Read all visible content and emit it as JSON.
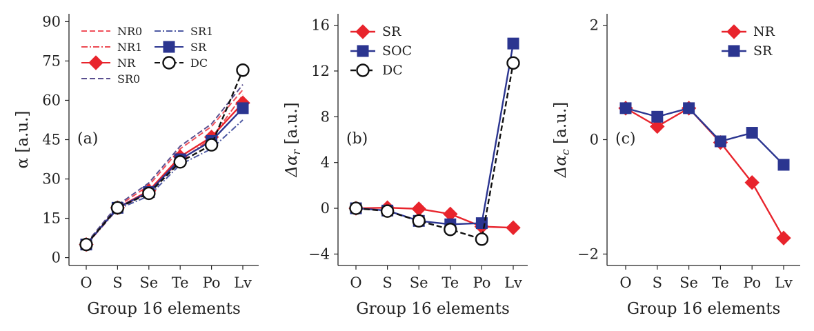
{
  "colors": {
    "red": "#e8242c",
    "blue": "#2b3590",
    "black": "#111111",
    "nr0": "#f0505a",
    "nr1": "#ec4a52",
    "sr0": "#5a4f8f",
    "sr1": "#4e5aa3"
  },
  "chart_data": [
    {
      "type": "line",
      "panel_label": "(a)",
      "title": "",
      "xlabel": "Group 16 elements",
      "ylabel": "α [a.u.]",
      "categories": [
        "O",
        "S",
        "Se",
        "Te",
        "Po",
        "Lv"
      ],
      "ylim": [
        -3,
        93
      ],
      "yticks": [
        0,
        15,
        30,
        45,
        60,
        75,
        90
      ],
      "legend_position": "top-left",
      "series": [
        {
          "name": "NR0",
          "style": "dashed",
          "color": "nr0",
          "values": [
            5.2,
            19.5,
            27.5,
            41.5,
            50.0,
            64.0
          ]
        },
        {
          "name": "NR1",
          "style": "dashdot",
          "color": "nr1",
          "values": [
            4.8,
            18.5,
            25.0,
            37.0,
            45.5,
            62.0
          ]
        },
        {
          "name": "NR",
          "style": "solid-diamond",
          "color": "red",
          "values": [
            5.0,
            19.0,
            25.5,
            38.5,
            46.0,
            59.0
          ]
        },
        {
          "name": "SR0",
          "style": "dashed",
          "color": "sr0",
          "values": [
            5.5,
            20.0,
            28.5,
            42.5,
            51.0,
            66.0
          ]
        },
        {
          "name": "SR1",
          "style": "dashdot",
          "color": "sr1",
          "values": [
            5.0,
            18.5,
            23.5,
            35.5,
            41.5,
            52.5
          ]
        },
        {
          "name": "SR",
          "style": "solid-square",
          "color": "blue",
          "values": [
            5.0,
            19.0,
            25.0,
            37.5,
            44.5,
            57.0
          ]
        },
        {
          "name": "DC",
          "style": "dashed-circle",
          "color": "black",
          "values": [
            5.0,
            19.0,
            24.5,
            36.5,
            43.0,
            71.5
          ]
        }
      ]
    },
    {
      "type": "line",
      "panel_label": "(b)",
      "title": "",
      "xlabel": "Group 16 elements",
      "ylabel": "Δα_r [a.u.]",
      "categories": [
        "O",
        "S",
        "Se",
        "Te",
        "Po",
        "Lv"
      ],
      "ylim": [
        -5,
        17
      ],
      "yticks": [
        -4,
        0,
        4,
        8,
        12,
        16
      ],
      "legend_position": "top-left",
      "series": [
        {
          "name": "SR",
          "style": "solid-diamond",
          "color": "red",
          "values": [
            0.0,
            0.05,
            -0.05,
            -0.5,
            -1.6,
            -1.7
          ]
        },
        {
          "name": "SOC",
          "style": "solid-square",
          "color": "blue",
          "values": [
            0.0,
            -0.2,
            -1.1,
            -1.4,
            -1.3,
            14.4
          ]
        },
        {
          "name": "DC",
          "style": "dashed-circle",
          "color": "black",
          "values": [
            0.0,
            -0.25,
            -1.1,
            -1.85,
            -2.7,
            12.7
          ]
        }
      ]
    },
    {
      "type": "line",
      "panel_label": "(c)",
      "title": "",
      "xlabel": "Group 16 elements",
      "ylabel": "Δα_c [a.u.]",
      "categories": [
        "O",
        "S",
        "Se",
        "Te",
        "Po",
        "Lv"
      ],
      "ylim": [
        -2.2,
        2.2
      ],
      "yticks": [
        -2,
        0,
        2
      ],
      "legend_position": "top-right",
      "series": [
        {
          "name": "NR",
          "style": "solid-diamond",
          "color": "red",
          "values": [
            0.55,
            0.23,
            0.55,
            -0.05,
            -0.75,
            -1.72
          ]
        },
        {
          "name": "SR",
          "style": "solid-square",
          "color": "blue",
          "values": [
            0.55,
            0.4,
            0.55,
            -0.03,
            0.12,
            -0.44
          ]
        }
      ]
    }
  ]
}
